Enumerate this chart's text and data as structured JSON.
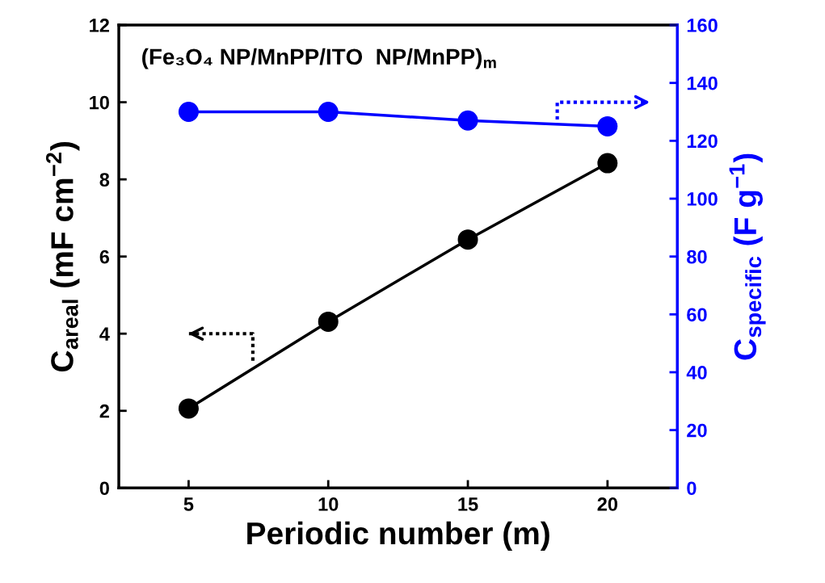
{
  "chart_data": {
    "type": "line",
    "x": [
      5,
      10,
      15,
      20
    ],
    "series": [
      {
        "color": "#000000",
        "values": [
          2.06,
          4.31,
          6.44,
          8.42
        ]
      },
      {
        "color": "#0000ff",
        "values": [
          130,
          130,
          127,
          125
        ],
        "axis": "y2"
      }
    ],
    "xlabel": "Periodic number (m)",
    "ylabel": "C$_{areal}$ (mF cm$^{−2}$)",
    "y2label": "C$_{specific}$ (F g$^{−1}$)",
    "annotations": [
      "(Fe₃O₄ NP/MnPP/ITO  NP/MnPP)$_{m}$"
    ],
    "xlim": [
      2.5,
      22.5
    ],
    "xticks": [
      5,
      10,
      15,
      20
    ],
    "ylim": [
      0,
      12
    ],
    "yticks": [
      0,
      2,
      4,
      6,
      8,
      10,
      12
    ],
    "y2lim": [
      0,
      160
    ],
    "y2ticks": [
      0,
      20,
      40,
      60,
      80,
      100,
      120,
      140,
      160
    ],
    "marker": "circle",
    "line_style": "solid",
    "grid": false,
    "legend": false
  }
}
